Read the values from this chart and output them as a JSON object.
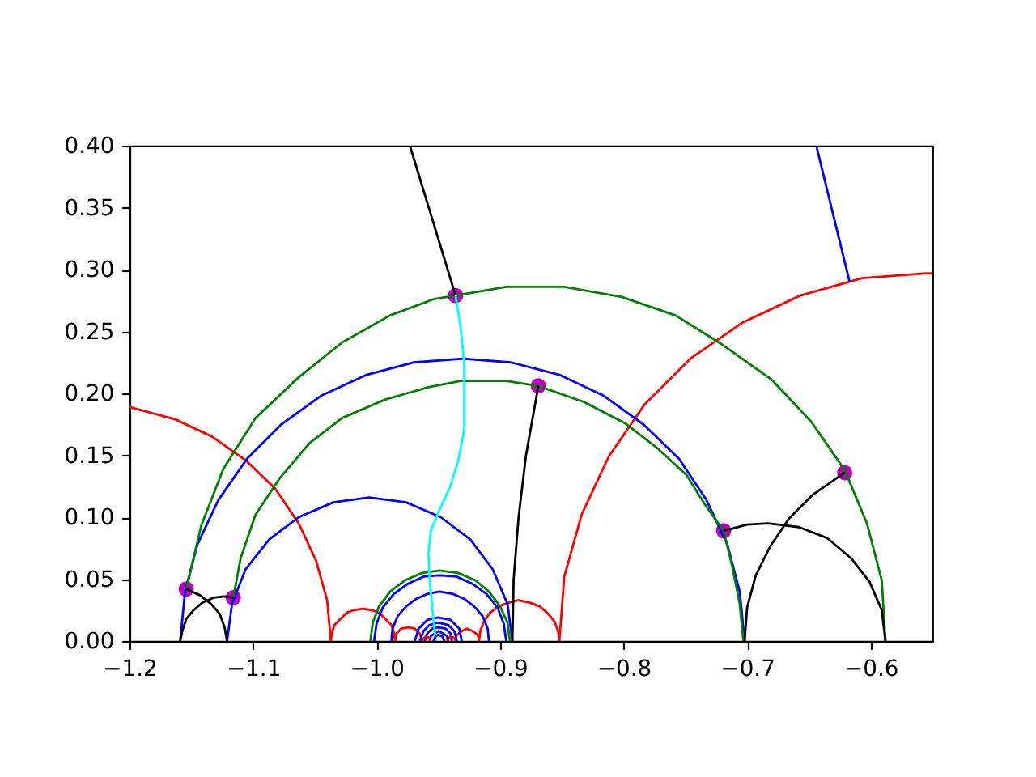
{
  "chart_data": {
    "type": "line",
    "xlim": [
      -1.2,
      -0.55
    ],
    "ylim": [
      0,
      0.4
    ],
    "xticks": [
      {
        "value": -1.2,
        "label": "−1.2"
      },
      {
        "value": -1.1,
        "label": "−1.1"
      },
      {
        "value": -1.0,
        "label": "−1.0"
      },
      {
        "value": -0.9,
        "label": "−0.9"
      },
      {
        "value": -0.8,
        "label": "−0.8"
      },
      {
        "value": -0.7,
        "label": "−0.7"
      },
      {
        "value": -0.6,
        "label": "−0.6"
      }
    ],
    "yticks": [
      {
        "value": 0,
        "label": "0.00"
      },
      0.05,
      {
        "value": 0.1,
        "label": "0.10"
      },
      0.15,
      {
        "value": 0.2,
        "label": "0.20"
      },
      0.25,
      {
        "value": 0.3,
        "label": "0.30"
      },
      0.35,
      {
        "value": 0.4,
        "label": "0.40"
      }
    ],
    "series": [
      {
        "type": "scatter",
        "marker": "circle",
        "color": "#bf00bf",
        "x": [
          -1.154,
          -1.116,
          -0.936,
          -0.869,
          -0.719,
          -0.621
        ],
        "values": [
          0.042,
          0.035,
          0.279,
          0.206,
          0.089,
          0.136
        ]
      },
      {
        "color": "#ff0000",
        "x": [
          -1.2,
          -1.163,
          -1.133,
          -1.106,
          -1.082,
          -1.063,
          -1.049,
          -1.04,
          -1.037
        ],
        "values": [
          0.189,
          0.179,
          0.165,
          0.146,
          0.123,
          0.095,
          0.065,
          0.033,
          0
        ]
      },
      {
        "color": "#ff0000",
        "x": [
          -1.037,
          -1.036,
          -1.034,
          -1.029,
          -1.024,
          -1.018,
          -1.011,
          -1.004,
          -0.998,
          -0.993,
          -0.988,
          -0.986,
          -0.985
        ],
        "values": [
          0,
          0.007,
          0.013,
          0.018,
          0.023,
          0.025,
          0.026,
          0.025,
          0.023,
          0.018,
          0.013,
          0.007,
          0
        ]
      },
      {
        "color": "#ff0000",
        "x": [
          -0.985,
          -0.984,
          -0.98,
          -0.974,
          -0.969,
          -0.965,
          -0.963
        ],
        "values": [
          0,
          0.006,
          0.01,
          0.011,
          0.01,
          0.006,
          0
        ]
      },
      {
        "color": "#ff0000",
        "x": [
          -0.936,
          -0.935,
          -0.931,
          -0.927,
          -0.922,
          -0.918,
          -0.917
        ],
        "values": [
          0,
          0.005,
          0.008,
          0.01,
          0.008,
          0.005,
          0
        ]
      },
      {
        "color": "#ff0000",
        "x": [
          -0.917,
          -0.916,
          -0.913,
          -0.908,
          -0.901,
          -0.893,
          -0.885,
          -0.876,
          -0.868,
          -0.862,
          -0.856,
          -0.853,
          -0.852
        ],
        "values": [
          0,
          0.008,
          0.016,
          0.023,
          0.028,
          0.031,
          0.033,
          0.031,
          0.028,
          0.023,
          0.016,
          0.008,
          0
        ]
      },
      {
        "color": "#ff0000",
        "x": [
          -0.852,
          -0.848,
          -0.834,
          -0.812,
          -0.783,
          -0.746,
          -0.704,
          -0.657,
          -0.607,
          -0.555,
          -0.55
        ],
        "values": [
          0,
          0.052,
          0.102,
          0.149,
          0.191,
          0.228,
          0.257,
          0.279,
          0.293,
          0.297,
          0.297
        ]
      },
      {
        "color": "#0000ff",
        "x": [
          -1.159,
          -1.155,
          -1.145,
          -1.128,
          -1.105,
          -1.077,
          -1.045,
          -1.008,
          -0.97,
          -0.93,
          -0.891,
          -0.852,
          -0.816,
          -0.784,
          -0.755,
          -0.733,
          -0.716,
          -0.706,
          -0.702
        ],
        "values": [
          0,
          0.04,
          0.078,
          0.114,
          0.147,
          0.175,
          0.198,
          0.215,
          0.225,
          0.228,
          0.225,
          0.215,
          0.198,
          0.175,
          0.147,
          0.114,
          0.078,
          0.04,
          0
        ]
      },
      {
        "color": "#0000ff",
        "x": [
          -1.121,
          -1.117,
          -1.106,
          -1.087,
          -1.063,
          -1.035,
          -1.006,
          -0.976,
          -0.948,
          -0.924,
          -0.906,
          -0.894,
          -0.89
        ],
        "values": [
          0,
          0.03,
          0.058,
          0.082,
          0.1,
          0.112,
          0.116,
          0.112,
          0.1,
          0.082,
          0.058,
          0.03,
          0
        ]
      },
      {
        "color": "#0000ff",
        "x": [
          -0.644,
          -0.617
        ],
        "values": [
          0.4,
          0.29
        ]
      },
      {
        "color": "#0000ff",
        "x": [
          -1.002,
          -1.0,
          -0.995,
          -0.986,
          -0.975,
          -0.962,
          -0.949,
          -0.935,
          -0.922,
          -0.911,
          -0.902,
          -0.897,
          -0.895
        ],
        "values": [
          0,
          0.014,
          0.027,
          0.038,
          0.046,
          0.052,
          0.053,
          0.052,
          0.046,
          0.038,
          0.027,
          0.014,
          0
        ]
      },
      {
        "color": "#0000ff",
        "x": [
          -0.988,
          -0.987,
          -0.983,
          -0.976,
          -0.968,
          -0.959,
          -0.949,
          -0.938,
          -0.929,
          -0.921,
          -0.914,
          -0.91,
          -0.909
        ],
        "values": [
          0,
          0.01,
          0.02,
          0.028,
          0.034,
          0.038,
          0.04,
          0.038,
          0.034,
          0.028,
          0.02,
          0.01,
          0
        ]
      },
      {
        "color": "#0000ff",
        "x": [
          -0.969,
          -0.966,
          -0.959,
          -0.95,
          -0.94,
          -0.933,
          -0.931
        ],
        "values": [
          0,
          0.01,
          0.017,
          0.019,
          0.017,
          0.01,
          0
        ]
      },
      {
        "color": "#0000ff",
        "x": [
          -0.965,
          -0.962,
          -0.957,
          -0.95,
          -0.942,
          -0.937,
          -0.935
        ],
        "values": [
          0,
          0.008,
          0.013,
          0.015,
          0.013,
          0.008,
          0
        ]
      },
      {
        "color": "#0000ff",
        "x": [
          -0.961,
          -0.959,
          -0.955,
          -0.95,
          -0.944,
          -0.94,
          -0.939
        ],
        "values": [
          0,
          0.006,
          0.01,
          0.011,
          0.01,
          0.006,
          0
        ]
      },
      {
        "color": "#0000ff",
        "x": [
          -0.957,
          -0.956,
          -0.953,
          -0.95,
          -0.946,
          -0.943,
          -0.942
        ],
        "values": [
          0,
          0.004,
          0.006,
          0.008,
          0.006,
          0.004,
          0
        ]
      },
      {
        "color": "#008000",
        "x": [
          -1.005,
          -1.003,
          -0.998,
          -0.989,
          -0.977,
          -0.963,
          -0.949,
          -0.934,
          -0.92,
          -0.909,
          -0.9,
          -0.894,
          -0.892
        ],
        "values": [
          0,
          0.015,
          0.028,
          0.04,
          0.049,
          0.055,
          0.057,
          0.055,
          0.049,
          0.04,
          0.028,
          0.015,
          0
        ]
      },
      {
        "color": "#008000",
        "x": [
          -1.154,
          -1.142,
          -1.124,
          -1.098,
          -1.063,
          -1.028,
          -0.989,
          -0.954,
          -0.936,
          -0.895,
          -0.848,
          -0.802,
          -0.758,
          -0.721,
          -0.68,
          -0.648,
          -0.621,
          -0.603,
          -0.591,
          -0.588
        ],
        "values": [
          0.042,
          0.093,
          0.139,
          0.18,
          0.213,
          0.241,
          0.263,
          0.276,
          0.279,
          0.286,
          0.286,
          0.278,
          0.263,
          0.24,
          0.211,
          0.177,
          0.138,
          0.095,
          0.049,
          0
        ]
      },
      {
        "color": "#008000",
        "x": [
          -1.116,
          -1.11,
          -1.098,
          -1.078,
          -1.054,
          -1.028,
          -0.993,
          -0.958,
          -0.932,
          -0.895,
          -0.869,
          -0.832,
          -0.799,
          -0.773,
          -0.749,
          -0.734,
          -0.719,
          -0.712,
          -0.706,
          -0.703
        ],
        "values": [
          0.035,
          0.067,
          0.102,
          0.132,
          0.16,
          0.18,
          0.195,
          0.205,
          0.21,
          0.21,
          0.206,
          0.193,
          0.176,
          0.156,
          0.134,
          0.11,
          0.089,
          0.06,
          0.03,
          0
        ]
      },
      {
        "color": "#000000",
        "x": [
          -1.159,
          -1.157,
          -1.154,
          -1.148,
          -1.141,
          -1.132,
          -1.123,
          -1.116
        ],
        "values": [
          0,
          0.009,
          0.018,
          0.025,
          0.031,
          0.035,
          0.036,
          0.035
        ]
      },
      {
        "color": "#000000",
        "x": [
          -1.154,
          -1.143,
          -1.134,
          -1.127,
          -1.123,
          -1.121
        ],
        "values": [
          0.042,
          0.037,
          0.03,
          0.022,
          0.011,
          0
        ]
      },
      {
        "color": "#000000",
        "x": [
          -0.973,
          -0.936
        ],
        "values": [
          0.4,
          0.279
        ]
      },
      {
        "color": "#000000",
        "x": [
          -0.89,
          -0.889,
          -0.885,
          -0.879,
          -0.869
        ],
        "values": [
          0,
          0.05,
          0.1,
          0.15,
          0.206
        ]
      },
      {
        "color": "#000000",
        "x": [
          -0.719,
          -0.7,
          -0.683,
          -0.658,
          -0.635,
          -0.616,
          -0.601,
          -0.591,
          -0.588
        ],
        "values": [
          0.089,
          0.094,
          0.095,
          0.092,
          0.083,
          0.067,
          0.048,
          0.025,
          0
        ]
      },
      {
        "color": "#000000",
        "x": [
          -0.702,
          -0.7,
          -0.693,
          -0.681,
          -0.666,
          -0.647,
          -0.621
        ],
        "values": [
          0,
          0.027,
          0.053,
          0.077,
          0.099,
          0.118,
          0.136
        ]
      },
      {
        "color": "#00ffff",
        "x": [
          -0.936,
          -0.932,
          -0.929,
          -0.929,
          -0.929,
          -0.934,
          -0.941,
          -0.949,
          -0.956,
          -0.958,
          -0.957,
          -0.955,
          -0.952
        ],
        "values": [
          0.279,
          0.254,
          0.224,
          0.197,
          0.171,
          0.145,
          0.123,
          0.106,
          0.089,
          0.071,
          0.049,
          0.028,
          0
        ]
      },
      {
        "color": "#0000ff",
        "x": [
          -0.954,
          -0.953,
          -0.952,
          -0.95,
          -0.947,
          -0.946,
          -0.945
        ],
        "values": [
          0,
          0.002,
          0.004,
          0.005,
          0.004,
          0.002,
          0
        ]
      },
      {
        "color": "#ff0000",
        "x": [
          -0.963,
          -0.962,
          -0.961,
          -0.96,
          -0.958,
          -0.957,
          -0.956
        ],
        "values": [
          0,
          0.002,
          0.003,
          0.004,
          0.003,
          0.002,
          0
        ]
      },
      {
        "color": "#ff0000",
        "x": [
          -0.943,
          -0.942,
          -0.941,
          -0.94,
          -0.938,
          -0.937,
          -0.936
        ],
        "values": [
          0,
          0.002,
          0.003,
          0.004,
          0.003,
          0.002,
          0
        ]
      }
    ]
  }
}
